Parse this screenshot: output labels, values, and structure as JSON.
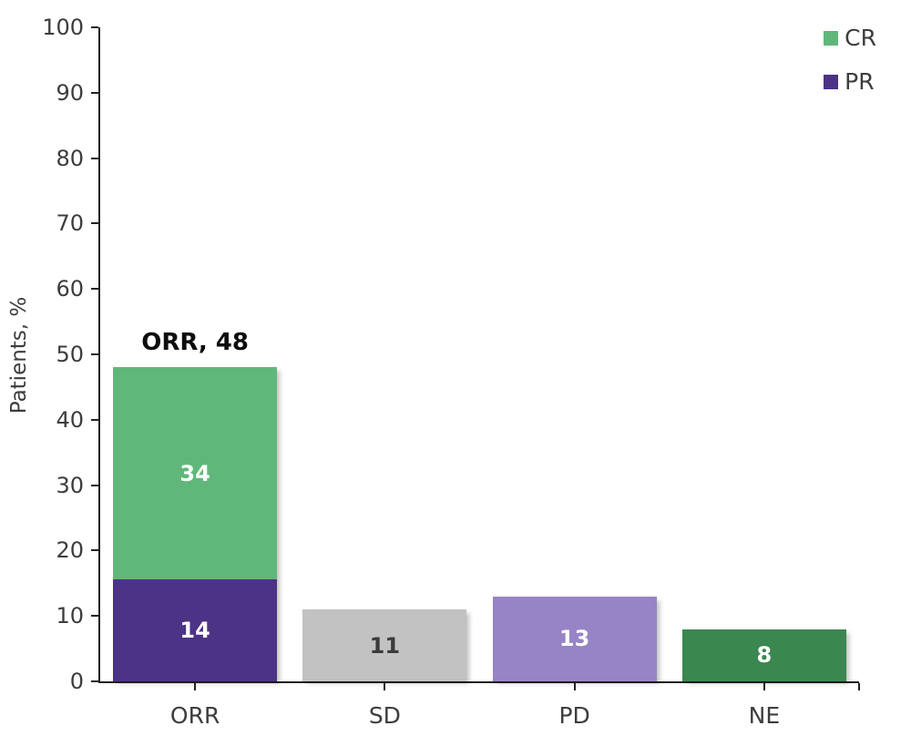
{
  "chart_data": {
    "type": "bar",
    "stacked": true,
    "title": "",
    "xlabel": "",
    "ylabel": "Patients, %",
    "ylim": [
      0,
      100
    ],
    "yticks": [
      0,
      10,
      20,
      30,
      40,
      50,
      60,
      70,
      80,
      90,
      100
    ],
    "grid": false,
    "legend_position": "top-right",
    "categories": [
      "ORR",
      "SD",
      "PD",
      "NE"
    ],
    "bars": [
      {
        "category": "ORR",
        "total": 48,
        "annotation": "ORR, 48",
        "segments": [
          {
            "name": "PR",
            "value": 14,
            "color": "#4c3385",
            "label_color": "#ffffff"
          },
          {
            "name": "CR",
            "value": 34,
            "color": "#5fb879",
            "label_color": "#ffffff"
          }
        ]
      },
      {
        "category": "SD",
        "total": 11,
        "annotation": "",
        "segments": [
          {
            "name": "SD",
            "value": 11,
            "color": "#c3c2c3",
            "label_color": "#3b3b3b"
          }
        ]
      },
      {
        "category": "PD",
        "total": 13,
        "annotation": "",
        "segments": [
          {
            "name": "PD",
            "value": 13,
            "color": "#9784c6",
            "label_color": "#ffffff"
          }
        ]
      },
      {
        "category": "NE",
        "total": 8,
        "annotation": "",
        "segments": [
          {
            "name": "NE",
            "value": 8,
            "color": "#3a8750",
            "label_color": "#ffffff"
          }
        ]
      }
    ],
    "legend": [
      {
        "label": "CR",
        "color": "#5fb879"
      },
      {
        "label": "PR",
        "color": "#4c3385"
      }
    ],
    "colors": {
      "axis_line": "#222222",
      "tick_text": "#3d3d3d",
      "annotation_text": "#0d0d0d",
      "background": "#ffffff"
    }
  }
}
